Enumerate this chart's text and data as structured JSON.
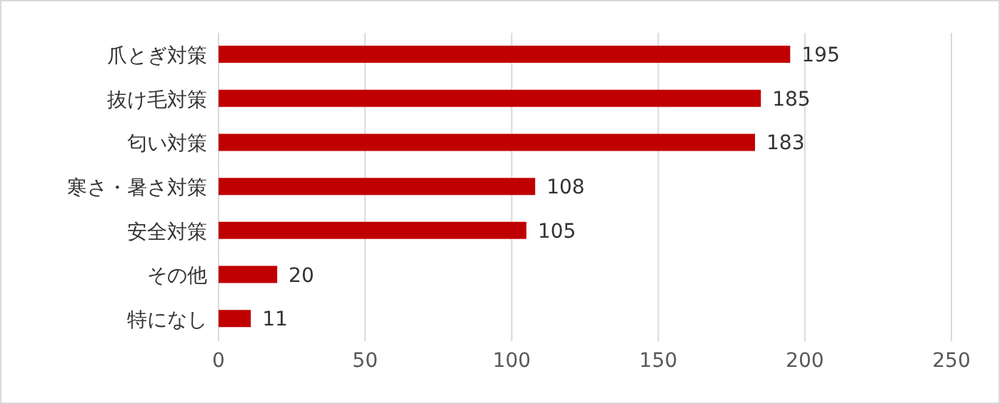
{
  "chart_data": {
    "type": "bar",
    "orientation": "horizontal",
    "categories": [
      "爪とぎ対策",
      "抜け毛対策",
      "匂い対策",
      "寒さ・暑さ対策",
      "安全対策",
      "その他",
      "特になし"
    ],
    "values": [
      195,
      185,
      183,
      108,
      105,
      20,
      11
    ],
    "color": "#c00000",
    "xlim": [
      0,
      250
    ],
    "xticks": [
      0,
      50,
      100,
      150,
      200,
      250
    ],
    "grid": "x",
    "data_labels": true
  }
}
